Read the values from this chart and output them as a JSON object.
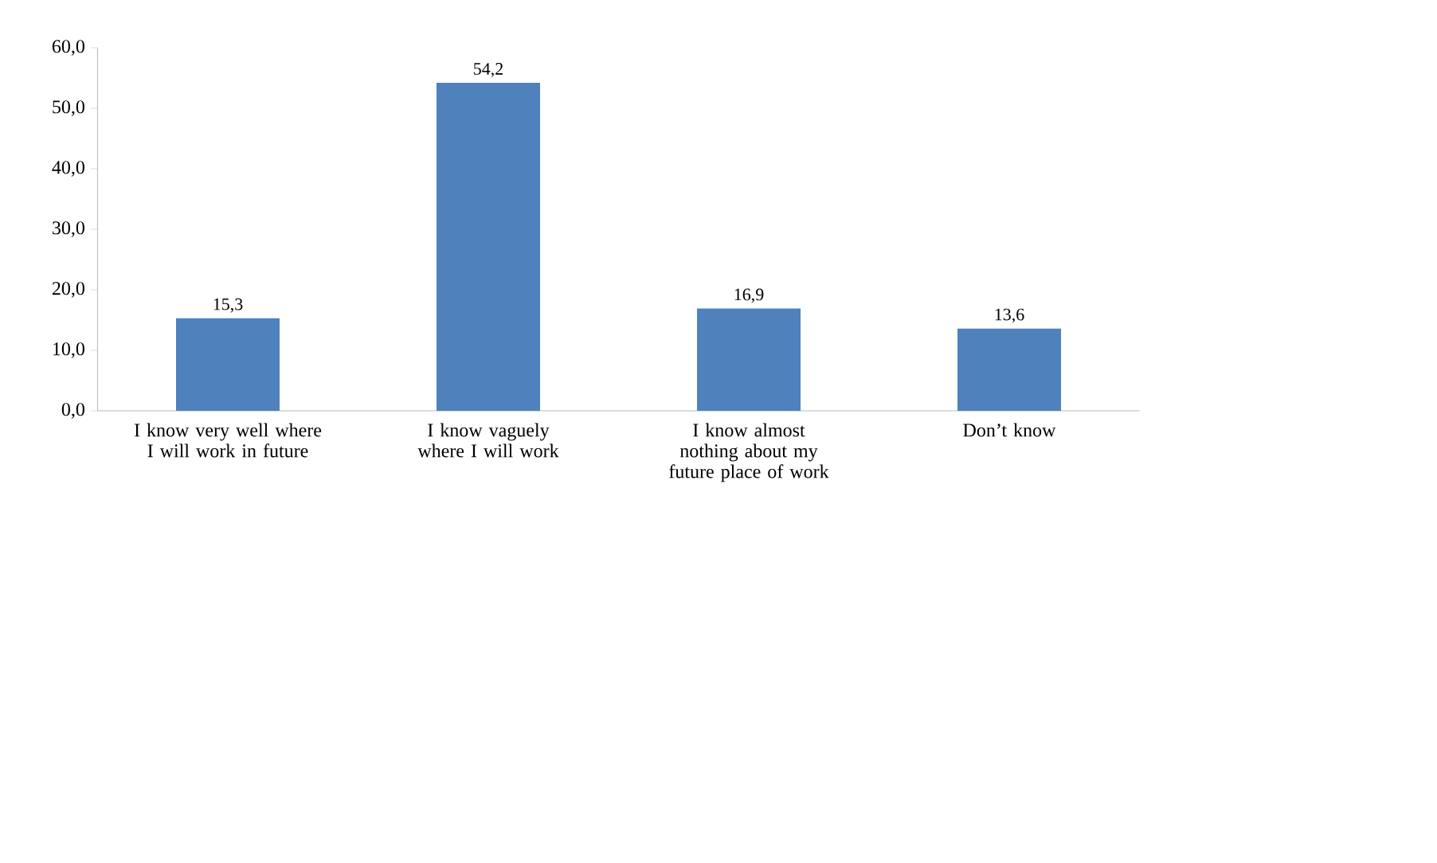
{
  "chart_data": {
    "type": "bar",
    "categories": [
      "I know very well where I will work in future",
      "I know vaguely where I will work",
      "I know almost nothing about my future place of work",
      "Don’t know"
    ],
    "values": [
      15.3,
      54.2,
      16.9,
      13.6
    ],
    "value_labels": [
      "15,3",
      "54,2",
      "16,9",
      "13,6"
    ],
    "ylim": [
      0,
      60
    ],
    "yticks": [
      {
        "value": 0,
        "label": "0,0"
      },
      {
        "value": 10,
        "label": "10,0"
      },
      {
        "value": 20,
        "label": "20,0"
      },
      {
        "value": 30,
        "label": "30,0"
      },
      {
        "value": 40,
        "label": "40,0"
      },
      {
        "value": 50,
        "label": "50,0"
      },
      {
        "value": 60,
        "label": "60,0"
      }
    ],
    "color": "#4f81bd"
  }
}
